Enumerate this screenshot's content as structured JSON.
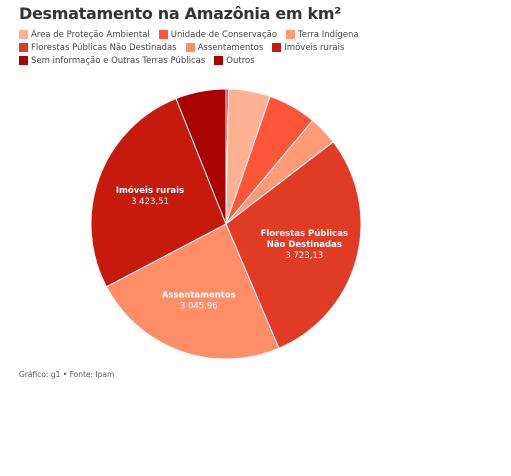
{
  "title": "Desmatamento na Amazônia em km²",
  "source": "Gráfico: g1 • Fonte: Ipam",
  "chart_data": {
    "type": "pie",
    "title": "Desmatamento na Amazônia em km²",
    "legend_position": "top-left",
    "slices": [
      {
        "label": "Outros",
        "value": 35,
        "color": "#a80000",
        "show_label": false,
        "value_label": ""
      },
      {
        "label": "Área de Proteção Ambiental",
        "value": 645,
        "color": "#ffb293",
        "show_label": false,
        "value_label": ""
      },
      {
        "label": "Unidade de Conservação",
        "value": 745,
        "color": "#fe5437",
        "show_label": false,
        "value_label": ""
      },
      {
        "label": "Terra Indígena",
        "value": 450,
        "color": "#ff9a76",
        "show_label": false,
        "value_label": ""
      },
      {
        "label": "Florestas Públicas Não Destinadas",
        "value": 3723.13,
        "color": "#e23b25",
        "show_label": true,
        "value_label": "3 723,13",
        "label_lines": [
          "Florestas Públicas",
          "Não Destinadas"
        ]
      },
      {
        "label": "Assentamentos",
        "value": 3045.96,
        "color": "#ff8e68",
        "show_label": true,
        "value_label": "3 045,96",
        "label_lines": [
          "Assentamentos"
        ]
      },
      {
        "label": "Imóveis rurais",
        "value": 3423.51,
        "color": "#c51a0d",
        "show_label": true,
        "value_label": "3 423,51",
        "label_lines": [
          "Imóveis rurais"
        ]
      },
      {
        "label": "Sem informação e Outras Terras Públicas",
        "value": 775,
        "color": "#a90000",
        "show_label": false,
        "value_label": ""
      }
    ]
  },
  "legend": {
    "rows": [
      [
        {
          "label": "Área de Proteção Ambiental",
          "color": "#ffb293"
        },
        {
          "label": "Unidade de Conservação",
          "color": "#fe5437"
        },
        {
          "label": "Terra Indígena",
          "color": "#ff9a76"
        }
      ],
      [
        {
          "label": "Florestas Públicas Não Destinadas",
          "color": "#e23b25"
        },
        {
          "label": "Assentamentos",
          "color": "#ff8e68"
        },
        {
          "label": "Imóveis rurais",
          "color": "#c51a0d"
        }
      ],
      [
        {
          "label": "Sem informação e Outras Terras Públicas",
          "color": "#a90000"
        },
        {
          "label": "Outros",
          "color": "#a80000"
        }
      ]
    ]
  }
}
